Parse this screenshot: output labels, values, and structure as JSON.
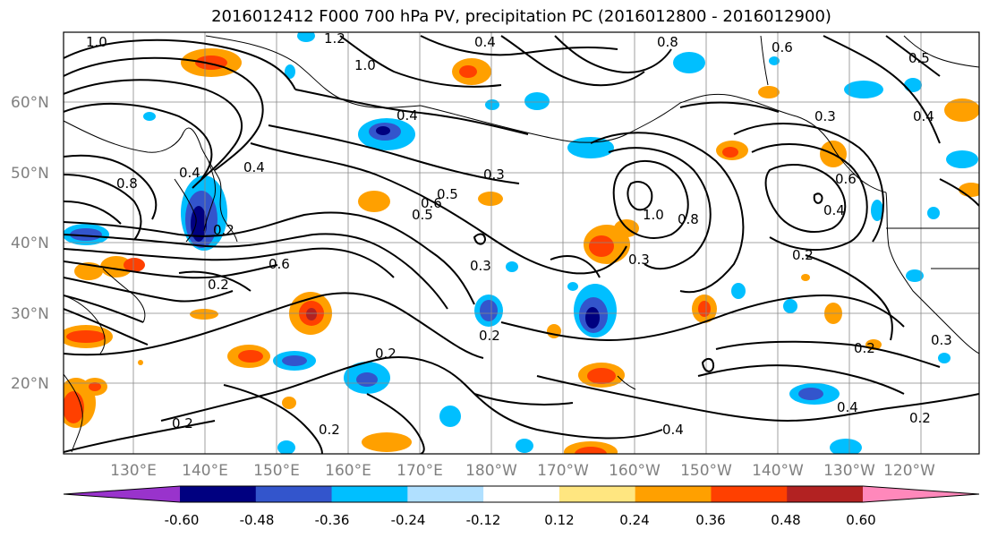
{
  "title": "2016012412 F000 700 hPa PV, precipitation PC (2016012800 - 2016012900)",
  "latitude_labels": [
    "60°N",
    "50°N",
    "40°N",
    "30°N",
    "20°N"
  ],
  "longitude_labels": [
    "130°E",
    "140°E",
    "150°E",
    "160°E",
    "170°E",
    "180°W",
    "170°W",
    "160°W",
    "150°W",
    "140°W",
    "130°W",
    "120°W"
  ],
  "contour_labels": [
    "1.0",
    "1.2",
    "0.4",
    "0.8",
    "0.6",
    "0.5",
    "0.4",
    "1.0",
    "0.4",
    "0.5",
    "0.3",
    "0.4",
    "0.2",
    "0.2",
    "0.3",
    "0.2",
    "0.2",
    "0.4",
    "0.2",
    "0.3",
    "1.0",
    "0.8",
    "0.3",
    "0.2",
    "0.4",
    "0.2",
    "0.6",
    "0.5",
    "0.4",
    "0.6",
    "0.2",
    "0.2",
    "0.8",
    "0.4",
    "0.6",
    "0.3"
  ],
  "colorbar": {
    "ticks": [
      "-0.60",
      "-0.48",
      "-0.36",
      "-0.24",
      "-0.12",
      "0.12",
      "0.24",
      "0.36",
      "0.48",
      "0.60"
    ],
    "colors": [
      "#9933cc",
      "#000080",
      "#3355cc",
      "#00bfff",
      "#b0e0ff",
      "#ffffff",
      "#ffe680",
      "#ffa000",
      "#ff4000",
      "#b22222",
      "#ff88bb"
    ]
  },
  "colors": {
    "contour": "#000000",
    "grid": "#888888",
    "coast": "#000000",
    "axis_text": "#808080"
  }
}
